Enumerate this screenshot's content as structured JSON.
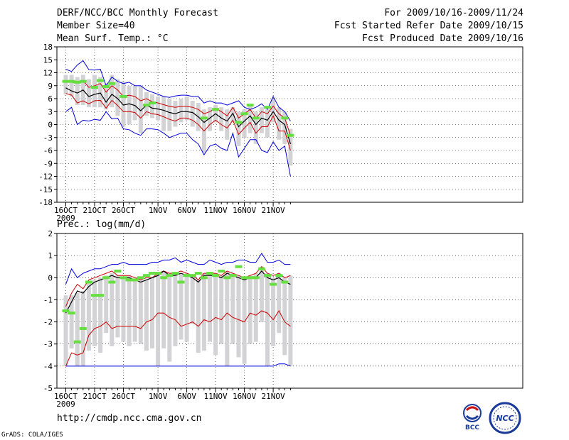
{
  "header": {
    "title": "DERF/NCC/BCC Monthly Forecast",
    "member_size": "Member Size=40",
    "variable": "Mean Surf. Temp.: °C",
    "period": "For 2009/10/16-2009/11/24",
    "started": "Fcst Started Refer Date 2009/10/15",
    "produced": "Fcst Produced Date 2009/10/16"
  },
  "footer": {
    "url": "http://cmdp.ncc.cma.gov.cn",
    "credit": "GrADS: COLA/IGES",
    "logo_bcc": "BCC",
    "logo_ncc": "NCC"
  },
  "colors": {
    "max_min": "#0000dd",
    "p10_p90": "#cc0000",
    "mean": "#000000",
    "box": "#d3d3d6",
    "marker": "#66e040"
  },
  "chart_data": [
    {
      "type": "box",
      "title": "Mean Surf. Temp.: °C",
      "x_tick_labels": [
        "16OCT",
        "21OCT",
        "26OCT",
        "1NOV",
        "6NOV",
        "11NOV",
        "16NOV",
        "21NOV"
      ],
      "x_year_label": "2009",
      "ylim": [
        -18,
        18
      ],
      "y_ticks": [
        -18,
        -15,
        -12,
        -9,
        -6,
        -3,
        0,
        3,
        6,
        9,
        12,
        15,
        18
      ],
      "grid": true,
      "days": 40,
      "series": [
        {
          "name": "max",
          "values": [
            12.8,
            12.3,
            13.8,
            14.8,
            12.7,
            12.6,
            12.8,
            9.0,
            11.0,
            10.0,
            9.5,
            9.8,
            9.0,
            9.0,
            8.0,
            7.5,
            7.0,
            6.5,
            6.3,
            6.6,
            6.8,
            6.8,
            6.5,
            6.5,
            5.0,
            5.5,
            5.0,
            5.0,
            4.5,
            5.0,
            5.5,
            4.0,
            3.5,
            4.0,
            4.8,
            3.5,
            6.5,
            4.0,
            3.0,
            0.8
          ]
        },
        {
          "name": "p90",
          "values": [
            10.2,
            9.8,
            9.6,
            10.2,
            8.6,
            9.0,
            9.5,
            7.5,
            9.0,
            8.0,
            6.5,
            6.8,
            6.5,
            5.5,
            6.0,
            5.3,
            5.0,
            4.6,
            4.2,
            4.0,
            4.2,
            4.2,
            4.0,
            3.5,
            2.5,
            3.0,
            3.8,
            3.0,
            2.0,
            4.0,
            1.5,
            2.5,
            3.5,
            1.5,
            3.0,
            2.5,
            4.3,
            2.5,
            1.5,
            -2.5
          ]
        },
        {
          "name": "mean",
          "values": [
            8.5,
            7.8,
            7.3,
            8.0,
            6.5,
            7.0,
            7.3,
            5.2,
            7.0,
            6.0,
            4.5,
            4.8,
            4.4,
            3.2,
            4.5,
            3.8,
            3.6,
            3.3,
            2.8,
            2.5,
            3.0,
            3.0,
            2.8,
            1.8,
            0.5,
            1.5,
            2.5,
            1.5,
            0.8,
            2.6,
            -0.5,
            0.8,
            2.0,
            0.0,
            1.5,
            1.0,
            3.0,
            1.0,
            0.0,
            -4.5
          ]
        },
        {
          "name": "p10",
          "values": [
            7.2,
            6.8,
            5.0,
            5.5,
            4.8,
            5.5,
            5.6,
            3.8,
            5.6,
            4.4,
            3.0,
            3.0,
            2.8,
            1.5,
            3.0,
            2.5,
            2.3,
            1.8,
            1.2,
            0.8,
            1.5,
            1.5,
            1.0,
            0.0,
            -1.5,
            0.0,
            1.0,
            0.0,
            -0.8,
            1.0,
            -2.3,
            -0.8,
            0.5,
            -2.0,
            -0.5,
            -0.5,
            2.0,
            -1.5,
            -1.5,
            -6.0
          ]
        },
        {
          "name": "min",
          "values": [
            3.0,
            4.0,
            0.0,
            1.0,
            0.8,
            1.2,
            1.0,
            3.0,
            1.3,
            1.5,
            -1.0,
            -1.2,
            -2.0,
            -2.5,
            -1.0,
            -1.0,
            -1.2,
            -2.0,
            -3.0,
            -2.5,
            -2.0,
            -2.0,
            -3.5,
            -4.5,
            -7.0,
            -5.0,
            -4.5,
            -5.5,
            -6.0,
            -2.0,
            -7.5,
            -5.5,
            -3.5,
            -3.5,
            -6.0,
            -6.5,
            -4.0,
            -6.0,
            -5.0,
            -12.0
          ]
        },
        {
          "name": "box_top",
          "values": [
            11.5,
            11.5,
            11.0,
            11.5,
            10.5,
            11.5,
            11.0,
            9.5,
            11.5,
            10.5,
            10.0,
            9.0,
            9.0,
            9.0,
            7.5,
            7.0,
            6.5,
            6.5,
            6.0,
            5.5,
            6.0,
            6.5,
            5.5,
            5.0,
            3.5,
            4.0,
            4.5,
            4.0,
            3.5,
            4.0,
            3.0,
            3.5,
            4.5,
            3.0,
            4.0,
            3.5,
            6.0,
            4.0,
            3.0,
            -1.0
          ]
        },
        {
          "name": "box_bottom",
          "values": [
            7.0,
            6.5,
            4.5,
            4.5,
            4.0,
            4.0,
            4.0,
            3.5,
            4.0,
            2.0,
            -0.5,
            0.0,
            1.0,
            -2.0,
            2.0,
            1.5,
            1.0,
            -1.5,
            -1.5,
            -0.5,
            0.5,
            1.0,
            -0.5,
            -1.5,
            -6.5,
            -1.5,
            0.5,
            -1.5,
            -3.5,
            0.5,
            -5.0,
            -3.0,
            -2.0,
            -4.5,
            -2.0,
            -3.0,
            0.5,
            -3.5,
            -4.5,
            -9.5
          ]
        },
        {
          "name": "marker",
          "values": [
            10.0,
            10.0,
            9.8,
            10.0,
            null,
            8.6,
            10.2,
            8.8,
            9.5,
            null,
            6.5,
            null,
            null,
            null,
            4.5,
            5.0,
            null,
            null,
            null,
            null,
            null,
            null,
            null,
            null,
            1.5,
            null,
            3.5,
            null,
            null,
            null,
            0.5,
            2.5,
            4.5,
            1.5,
            null,
            4.0,
            null,
            null,
            1.5,
            -2.5
          ]
        }
      ]
    },
    {
      "type": "box",
      "title": "Prec.: log(mm/d)",
      "x_tick_labels": [
        "16OCT",
        "21OCT",
        "26OCT",
        "1NOV",
        "6NOV",
        "11NOV",
        "16NOV",
        "21NOV"
      ],
      "x_year_label": "2009",
      "ylim": [
        -5,
        2
      ],
      "y_ticks": [
        -5,
        -4,
        -3,
        -2,
        -1,
        0,
        1,
        2
      ],
      "grid": true,
      "days": 40,
      "series": [
        {
          "name": "max",
          "values": [
            -0.3,
            0.4,
            0.0,
            0.2,
            0.3,
            0.4,
            0.4,
            0.5,
            0.6,
            0.6,
            0.7,
            0.6,
            0.6,
            0.6,
            0.6,
            0.7,
            0.7,
            0.8,
            0.8,
            0.9,
            0.7,
            0.8,
            0.7,
            0.6,
            0.6,
            0.8,
            0.7,
            0.6,
            0.7,
            0.7,
            0.8,
            0.8,
            0.7,
            0.7,
            1.1,
            0.7,
            0.7,
            0.8,
            0.6,
            0.6
          ]
        },
        {
          "name": "p90",
          "values": [
            -1.3,
            -0.7,
            -0.3,
            -0.5,
            -0.1,
            0.0,
            0.1,
            0.2,
            0.3,
            0.1,
            0.1,
            0.1,
            0.0,
            -0.1,
            0.0,
            0.0,
            0.2,
            0.3,
            0.2,
            0.2,
            0.3,
            0.2,
            0.1,
            -0.1,
            0.2,
            0.2,
            0.2,
            0.1,
            0.3,
            0.2,
            0.1,
            0.0,
            0.1,
            0.2,
            0.5,
            0.2,
            0.1,
            0.2,
            0.0,
            0.1
          ]
        },
        {
          "name": "mean",
          "values": [
            -1.6,
            -1.1,
            -0.6,
            -0.7,
            -0.4,
            -0.2,
            -0.1,
            0.0,
            0.1,
            0.0,
            0.0,
            0.0,
            -0.1,
            -0.2,
            -0.1,
            0.0,
            0.1,
            0.3,
            0.1,
            0.1,
            0.2,
            0.1,
            0.0,
            -0.2,
            0.1,
            0.1,
            0.1,
            0.0,
            0.2,
            0.1,
            0.0,
            -0.1,
            0.0,
            0.0,
            0.3,
            0.0,
            -0.1,
            0.0,
            -0.2,
            -0.3
          ]
        },
        {
          "name": "p10",
          "values": [
            -4.0,
            -3.4,
            -3.5,
            -3.4,
            -2.6,
            -2.3,
            -2.2,
            -2.0,
            -2.3,
            -2.2,
            -2.2,
            -2.2,
            -2.2,
            -2.3,
            -2.0,
            -1.9,
            -1.6,
            -1.6,
            -1.8,
            -1.9,
            -2.2,
            -2.1,
            -2.0,
            -2.2,
            -1.9,
            -2.0,
            -1.8,
            -1.9,
            -1.6,
            -1.8,
            -1.9,
            -2.0,
            -1.6,
            -1.7,
            -1.5,
            -1.6,
            -1.9,
            -1.5,
            -2.0,
            -2.2
          ]
        },
        {
          "name": "min",
          "values": [
            -4.0,
            -4.0,
            -4.0,
            -4.0,
            -4.0,
            -4.0,
            -4.0,
            -4.0,
            -4.0,
            -4.0,
            -4.0,
            -4.0,
            -4.0,
            -4.0,
            -4.0,
            -4.0,
            -4.0,
            -4.0,
            -4.0,
            -4.0,
            -4.0,
            -4.0,
            -4.0,
            -4.0,
            -4.0,
            -4.0,
            -4.0,
            -4.0,
            -4.0,
            -4.0,
            -4.0,
            -4.0,
            -4.0,
            -4.0,
            -4.0,
            -4.0,
            -4.0,
            -3.9,
            -3.9,
            -4.0
          ]
        },
        {
          "name": "box_top",
          "values": [
            -0.8,
            -0.8,
            -0.7,
            -0.6,
            -0.2,
            -0.1,
            0.0,
            0.1,
            0.2,
            0.1,
            0.0,
            0.1,
            -0.1,
            -0.1,
            -0.1,
            0.0,
            0.2,
            0.3,
            0.2,
            0.2,
            0.2,
            0.2,
            0.1,
            -0.1,
            0.2,
            0.2,
            0.2,
            0.1,
            0.3,
            0.2,
            0.1,
            0.0,
            0.1,
            0.2,
            0.5,
            0.2,
            0.0,
            0.2,
            0.0,
            0.1
          ]
        },
        {
          "name": "box_bottom",
          "values": [
            -4.0,
            -3.2,
            -4.0,
            -4.0,
            -3.3,
            -3.1,
            -3.4,
            -2.5,
            -3.1,
            -2.7,
            -2.9,
            -3.1,
            -2.9,
            -3.0,
            -3.3,
            -3.2,
            -4.0,
            -3.2,
            -3.8,
            -3.1,
            -2.8,
            -2.9,
            -2.1,
            -3.4,
            -3.3,
            -2.9,
            -3.5,
            -3.0,
            -4.0,
            -3.0,
            -3.6,
            -3.9,
            -3.0,
            -2.9,
            -2.0,
            -4.0,
            -3.1,
            -2.5,
            -3.5,
            -4.0
          ]
        },
        {
          "name": "marker",
          "values": [
            -1.5,
            -1.6,
            -2.9,
            -2.3,
            -0.2,
            -0.8,
            -0.8,
            0.0,
            -0.2,
            0.3,
            0.0,
            -0.1,
            -0.1,
            0.0,
            0.1,
            0.2,
            0.2,
            0.0,
            0.1,
            0.2,
            -0.2,
            0.1,
            0.1,
            0.2,
            0.0,
            0.2,
            0.1,
            0.3,
            0.0,
            0.1,
            0.5,
            0.0,
            0.0,
            0.0,
            0.4,
            0.1,
            -0.3,
            0.1,
            -0.2,
            null
          ]
        }
      ]
    }
  ]
}
